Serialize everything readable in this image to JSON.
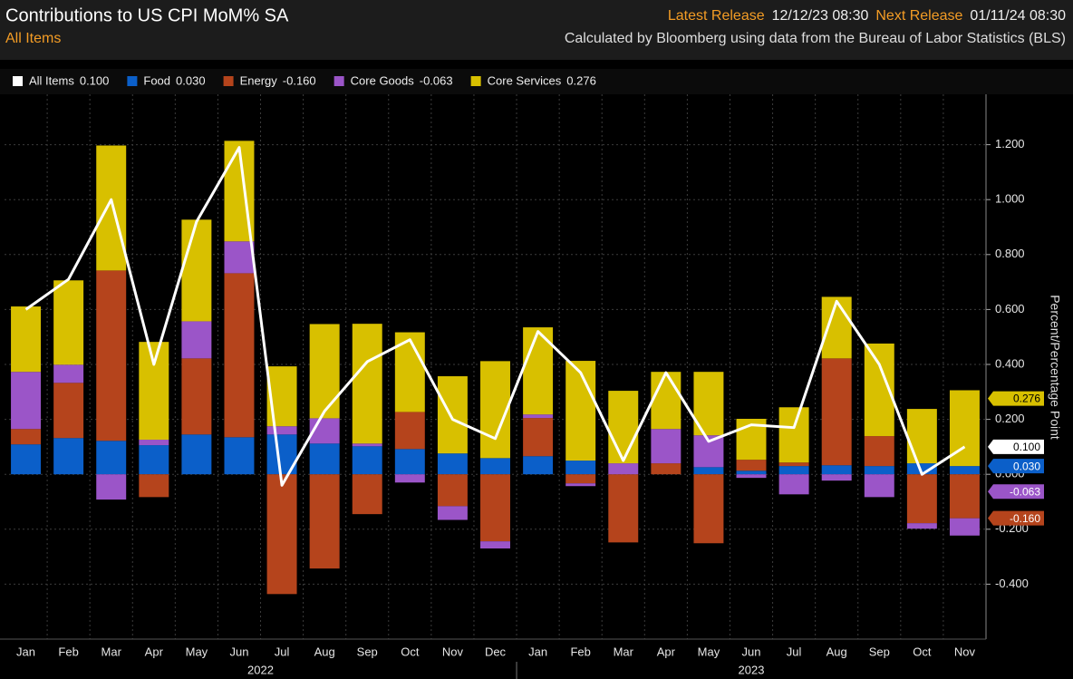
{
  "chart_data": {
    "type": "bar",
    "title": "Contributions to US CPI MoM% SA",
    "subtitle": "All Items",
    "latest_release_label": "Latest Release",
    "latest_release": "12/12/23 08:30",
    "next_release_label": "Next Release",
    "next_release": "01/11/24 08:30",
    "source": "Calculated by Bloomberg using data from the Bureau of Labor Statistics (BLS)",
    "y_label": "Percent/Percentage Point",
    "categories": [
      "Jan",
      "Feb",
      "Mar",
      "Apr",
      "May",
      "Jun",
      "Jul",
      "Aug",
      "Sep",
      "Oct",
      "Nov",
      "Dec",
      "Jan",
      "Feb",
      "Mar",
      "Apr",
      "May",
      "Jun",
      "Jul",
      "Aug",
      "Sep",
      "Oct",
      "Nov"
    ],
    "years": [
      "2022",
      "2023"
    ],
    "ylim": [
      -0.6,
      1.4
    ],
    "yticks": [
      {
        "value": -0.4,
        "label": "-0.400"
      },
      {
        "value": -0.2,
        "label": "-0.200"
      },
      {
        "value": 0,
        "label": "0.000"
      },
      {
        "value": 0.2,
        "label": "0.200"
      },
      {
        "value": 0.4,
        "label": "0.400"
      },
      {
        "value": 0.6,
        "label": "0.600"
      },
      {
        "value": 0.8,
        "label": "0.800"
      },
      {
        "value": 1.0,
        "label": "1.000"
      },
      {
        "value": 1.2,
        "label": "1.200"
      }
    ],
    "grid": true,
    "stacked": true,
    "series": [
      {
        "name": "All Items",
        "type": "line",
        "color": "#ffffff",
        "values": [
          0.6,
          0.71,
          1.0,
          0.4,
          0.92,
          1.19,
          -0.04,
          0.23,
          0.41,
          0.49,
          0.2,
          0.13,
          0.52,
          0.37,
          0.05,
          0.37,
          0.12,
          0.18,
          0.17,
          0.63,
          0.4,
          0.0,
          0.1
        ],
        "value_labels": [
          null,
          null,
          null,
          null,
          null,
          null,
          null,
          null,
          null,
          null,
          null,
          null,
          null,
          null,
          null,
          null,
          null,
          null,
          null,
          null,
          null,
          null,
          "0.100"
        ]
      },
      {
        "name": "Food",
        "type": "bar",
        "color": "#0b5fc9",
        "values": [
          0.109,
          0.132,
          0.122,
          0.106,
          0.145,
          0.135,
          0.145,
          0.112,
          0.102,
          0.092,
          0.076,
          0.059,
          0.066,
          0.05,
          0,
          0,
          0.026,
          0.013,
          0.03,
          0.033,
          0.03,
          0.04,
          0.03
        ],
        "value_labels": [
          null,
          null,
          null,
          null,
          null,
          null,
          null,
          null,
          null,
          null,
          null,
          null,
          null,
          null,
          null,
          null,
          null,
          null,
          null,
          null,
          null,
          null,
          "0.030"
        ]
      },
      {
        "name": "Energy",
        "type": "bar",
        "color": "#b5441c",
        "values": [
          0.056,
          0.201,
          0.62,
          -0.083,
          0.277,
          0.597,
          -0.436,
          -0.343,
          -0.145,
          0.135,
          -0.116,
          -0.244,
          0.139,
          -0.033,
          -0.248,
          0.04,
          -0.251,
          0.04,
          0.013,
          0.389,
          0.109,
          -0.178,
          -0.16
        ],
        "value_labels": [
          null,
          null,
          null,
          null,
          null,
          null,
          null,
          null,
          null,
          null,
          null,
          null,
          null,
          null,
          null,
          null,
          null,
          null,
          null,
          null,
          null,
          null,
          "-0.160"
        ]
      },
      {
        "name": "Core Goods",
        "type": "bar",
        "color": "#9b55c8",
        "values": [
          0.208,
          0.066,
          -0.092,
          0.02,
          0.135,
          0.116,
          0.03,
          0.092,
          0.01,
          -0.03,
          -0.05,
          -0.026,
          0.013,
          -0.01,
          0.04,
          0.125,
          0.116,
          -0.013,
          -0.073,
          -0.023,
          -0.083,
          -0.02,
          -0.063
        ],
        "value_labels": [
          null,
          null,
          null,
          null,
          null,
          null,
          null,
          null,
          null,
          null,
          null,
          null,
          null,
          null,
          null,
          null,
          null,
          null,
          null,
          null,
          null,
          null,
          "-0.063"
        ]
      },
      {
        "name": "Core Services",
        "type": "bar",
        "color": "#d8c000",
        "values": [
          0.238,
          0.307,
          0.455,
          0.356,
          0.37,
          0.366,
          0.218,
          0.343,
          0.436,
          0.29,
          0.281,
          0.353,
          0.317,
          0.363,
          0.264,
          0.208,
          0.231,
          0.149,
          0.201,
          0.224,
          0.337,
          0.198,
          0.276
        ],
        "value_labels": [
          null,
          null,
          null,
          null,
          null,
          null,
          null,
          null,
          null,
          null,
          null,
          null,
          null,
          null,
          null,
          null,
          null,
          null,
          null,
          null,
          null,
          null,
          "0.276"
        ]
      }
    ]
  }
}
